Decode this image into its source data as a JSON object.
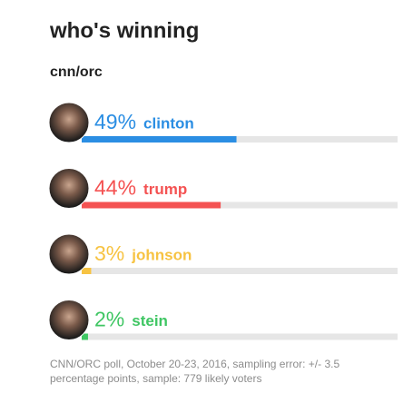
{
  "chart_data": {
    "type": "bar",
    "title": "who's winning",
    "subtitle": "cnn/orc",
    "categories": [
      "clinton",
      "trump",
      "johnson",
      "stein"
    ],
    "values": [
      49,
      44,
      3,
      2
    ],
    "value_labels": [
      "49%",
      "44%",
      "3%",
      "2%"
    ],
    "colors": [
      "#2b8ee3",
      "#f45252",
      "#f7c342",
      "#3fc663"
    ],
    "xlim": [
      0,
      100
    ],
    "note": "CNN/ORC poll, October 20-23, 2016, sampling error: +/- 3.5 percentage points, sample: 779 likely voters"
  }
}
